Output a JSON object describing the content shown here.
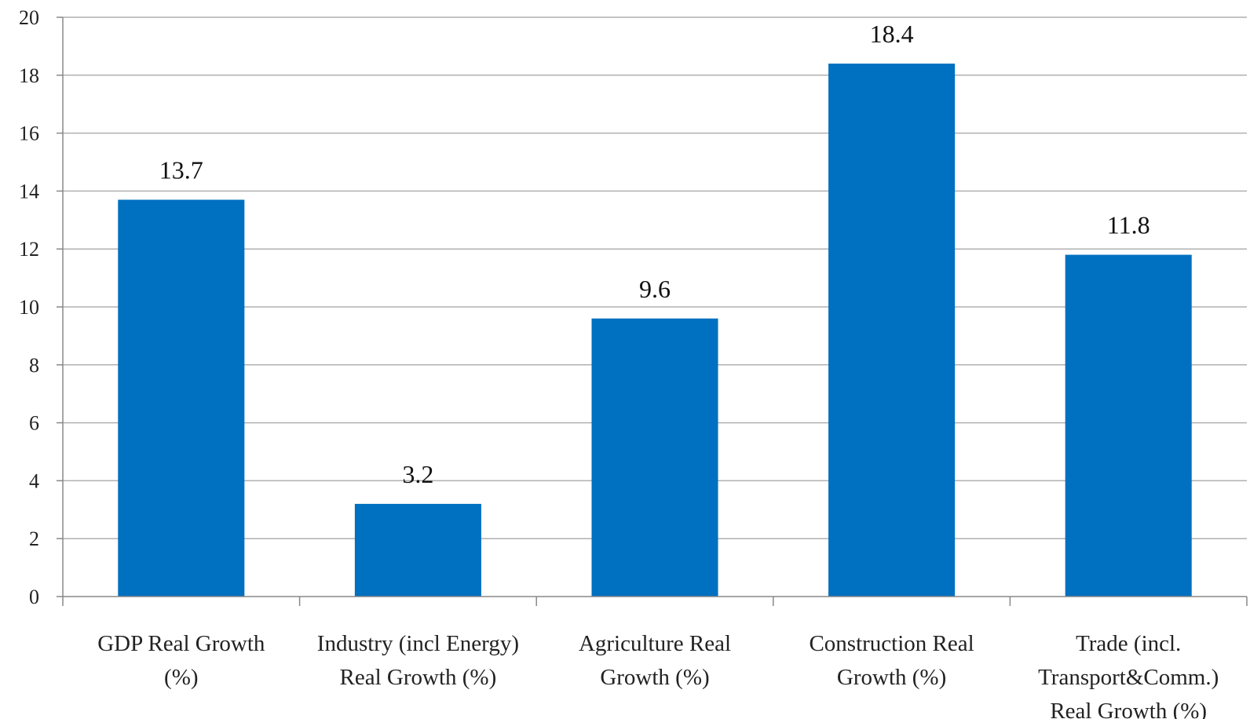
{
  "chart_data": {
    "type": "bar",
    "categories": [
      [
        "GDP Real Growth",
        "(%)"
      ],
      [
        "Industry (incl Energy)",
        "Real Growth (%)"
      ],
      [
        "Agriculture Real",
        "Growth (%)"
      ],
      [
        "Construction Real",
        "Growth (%)"
      ],
      [
        "Trade (incl.",
        "Transport&Comm.)",
        "Real Growth (%)"
      ]
    ],
    "values": [
      13.7,
      3.2,
      9.6,
      18.4,
      11.8
    ],
    "value_labels": [
      "13.7",
      "3.2",
      "9.6",
      "18.4",
      "11.8"
    ],
    "yticks": [
      "0",
      "2",
      "4",
      "6",
      "8",
      "10",
      "12",
      "14",
      "16",
      "18",
      "20"
    ],
    "ylim": [
      0,
      20
    ],
    "title": "",
    "xlabel": "",
    "ylabel": "",
    "grid": true,
    "legend": "none",
    "bar_color": "#0070C0",
    "grid_color": "#b0b0b0"
  }
}
